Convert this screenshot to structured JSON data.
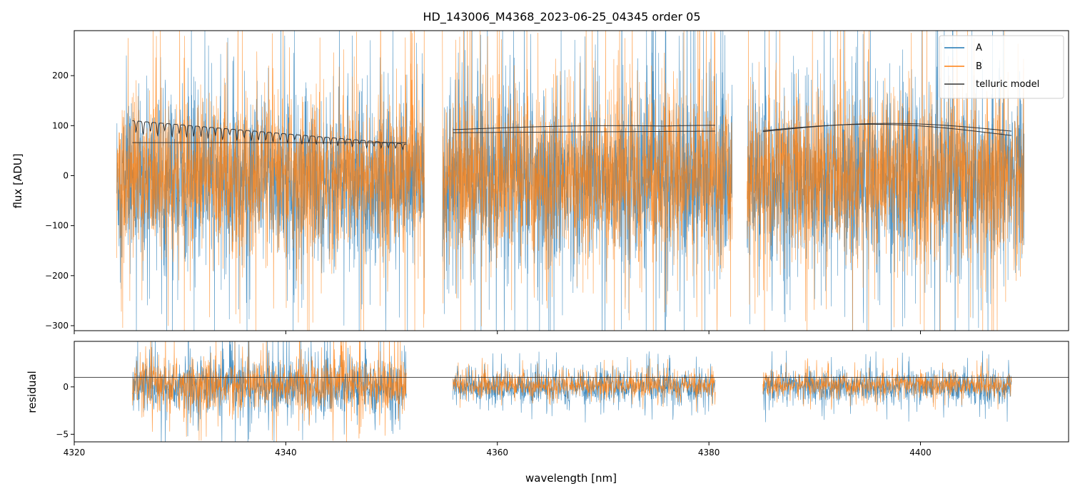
{
  "chart_data": [
    {
      "id": "top",
      "type": "line",
      "title": "HD_143006_M4368_2023-06-25_04345  order 05",
      "xlabel": "",
      "ylabel": "flux [ADU]",
      "xlim": [
        4320,
        4414
      ],
      "ylim": [
        -310,
        290
      ],
      "yticks": [
        200,
        100,
        0,
        -100,
        -200,
        -300
      ],
      "ytick_labels": [
        "200",
        "100",
        "0",
        "−100",
        "−200",
        "−300"
      ],
      "xticks": [
        4320,
        4340,
        4360,
        4380,
        4400
      ],
      "grid": false,
      "legend": {
        "placement": "top-right",
        "entries": [
          {
            "label": "A",
            "color": "#1f77b4"
          },
          {
            "label": "B",
            "color": "#ff7f0e"
          },
          {
            "label": "telluric model",
            "color": "#333333"
          }
        ]
      },
      "series": [
        {
          "name": "A",
          "color": "#1f77b4",
          "segments": [
            {
              "x_range": [
                4324.0,
                4353.1
              ],
              "center": -10,
              "spread": 150,
              "extreme_low": -310,
              "extreme_high": 290
            },
            {
              "x_range": [
                4354.8,
                4382.2
              ],
              "center": -10,
              "spread": 160,
              "extreme_low": -310,
              "extreme_high": 290
            },
            {
              "x_range": [
                4383.6,
                4409.8
              ],
              "center": -10,
              "spread": 160,
              "extreme_low": -310,
              "extreme_high": 290
            }
          ]
        },
        {
          "name": "B",
          "color": "#ff7f0e",
          "segments": [
            {
              "x_range": [
                4324.0,
                4353.1
              ],
              "center": 0,
              "spread": 140,
              "extreme_low": -280,
              "extreme_high": 290
            },
            {
              "x_range": [
                4354.8,
                4382.2
              ],
              "center": 0,
              "spread": 150,
              "extreme_low": -300,
              "extreme_high": 290
            },
            {
              "x_range": [
                4383.6,
                4409.8
              ],
              "center": 0,
              "spread": 150,
              "extreme_low": -300,
              "extreme_high": 290
            }
          ]
        },
        {
          "name": "telluric model",
          "color": "#333333",
          "segments": [
            {
              "x_range": [
                4325.5,
                4351.4
              ],
              "baseline": 66,
              "upper_start": 110,
              "upper_end": 63,
              "absorption_lines": true
            },
            {
              "x_range": [
                4355.8,
                4380.6
              ],
              "baseline_start": 86,
              "baseline_end": 89,
              "upper_start": 92,
              "upper_peak": 100,
              "upper_end": 104,
              "absorption_lines": false
            },
            {
              "x_range": [
                4385.1,
                4408.6
              ],
              "baseline_start": 88,
              "baseline_mid": 104,
              "baseline_end": 90,
              "upper_start": 90,
              "upper_mid": 106,
              "upper_end": 82,
              "absorption_lines": false
            }
          ]
        }
      ]
    },
    {
      "id": "bottom",
      "type": "line",
      "title": "",
      "xlabel": "wavelength [nm]",
      "ylabel": "residual",
      "xlim": [
        4320,
        4414
      ],
      "ylim": [
        -5.8,
        4.8
      ],
      "yticks": [
        0,
        -5
      ],
      "ytick_labels": [
        "0",
        "−5"
      ],
      "xticks": [
        4320,
        4340,
        4360,
        4380,
        4400
      ],
      "xtick_labels": [
        "4320",
        "4340",
        "4360",
        "4380",
        "4400"
      ],
      "reference_line": 1.0,
      "series": [
        {
          "name": "A",
          "color": "#1f77b4",
          "segments": [
            {
              "x_range": [
                4325.5,
                4351.4
              ],
              "center": 0,
              "spread": 2.8
            },
            {
              "x_range": [
                4355.8,
                4380.6
              ],
              "center": 0,
              "spread": 1.6
            },
            {
              "x_range": [
                4385.1,
                4408.6
              ],
              "center": 0,
              "spread": 1.6
            }
          ]
        },
        {
          "name": "B",
          "color": "#ff7f0e",
          "segments": [
            {
              "x_range": [
                4325.5,
                4351.4
              ],
              "center": 0.2,
              "spread": 2.6
            },
            {
              "x_range": [
                4355.8,
                4380.6
              ],
              "center": 0.2,
              "spread": 1.2
            },
            {
              "x_range": [
                4385.1,
                4408.6
              ],
              "center": 0.2,
              "spread": 1.2
            }
          ]
        }
      ]
    }
  ]
}
